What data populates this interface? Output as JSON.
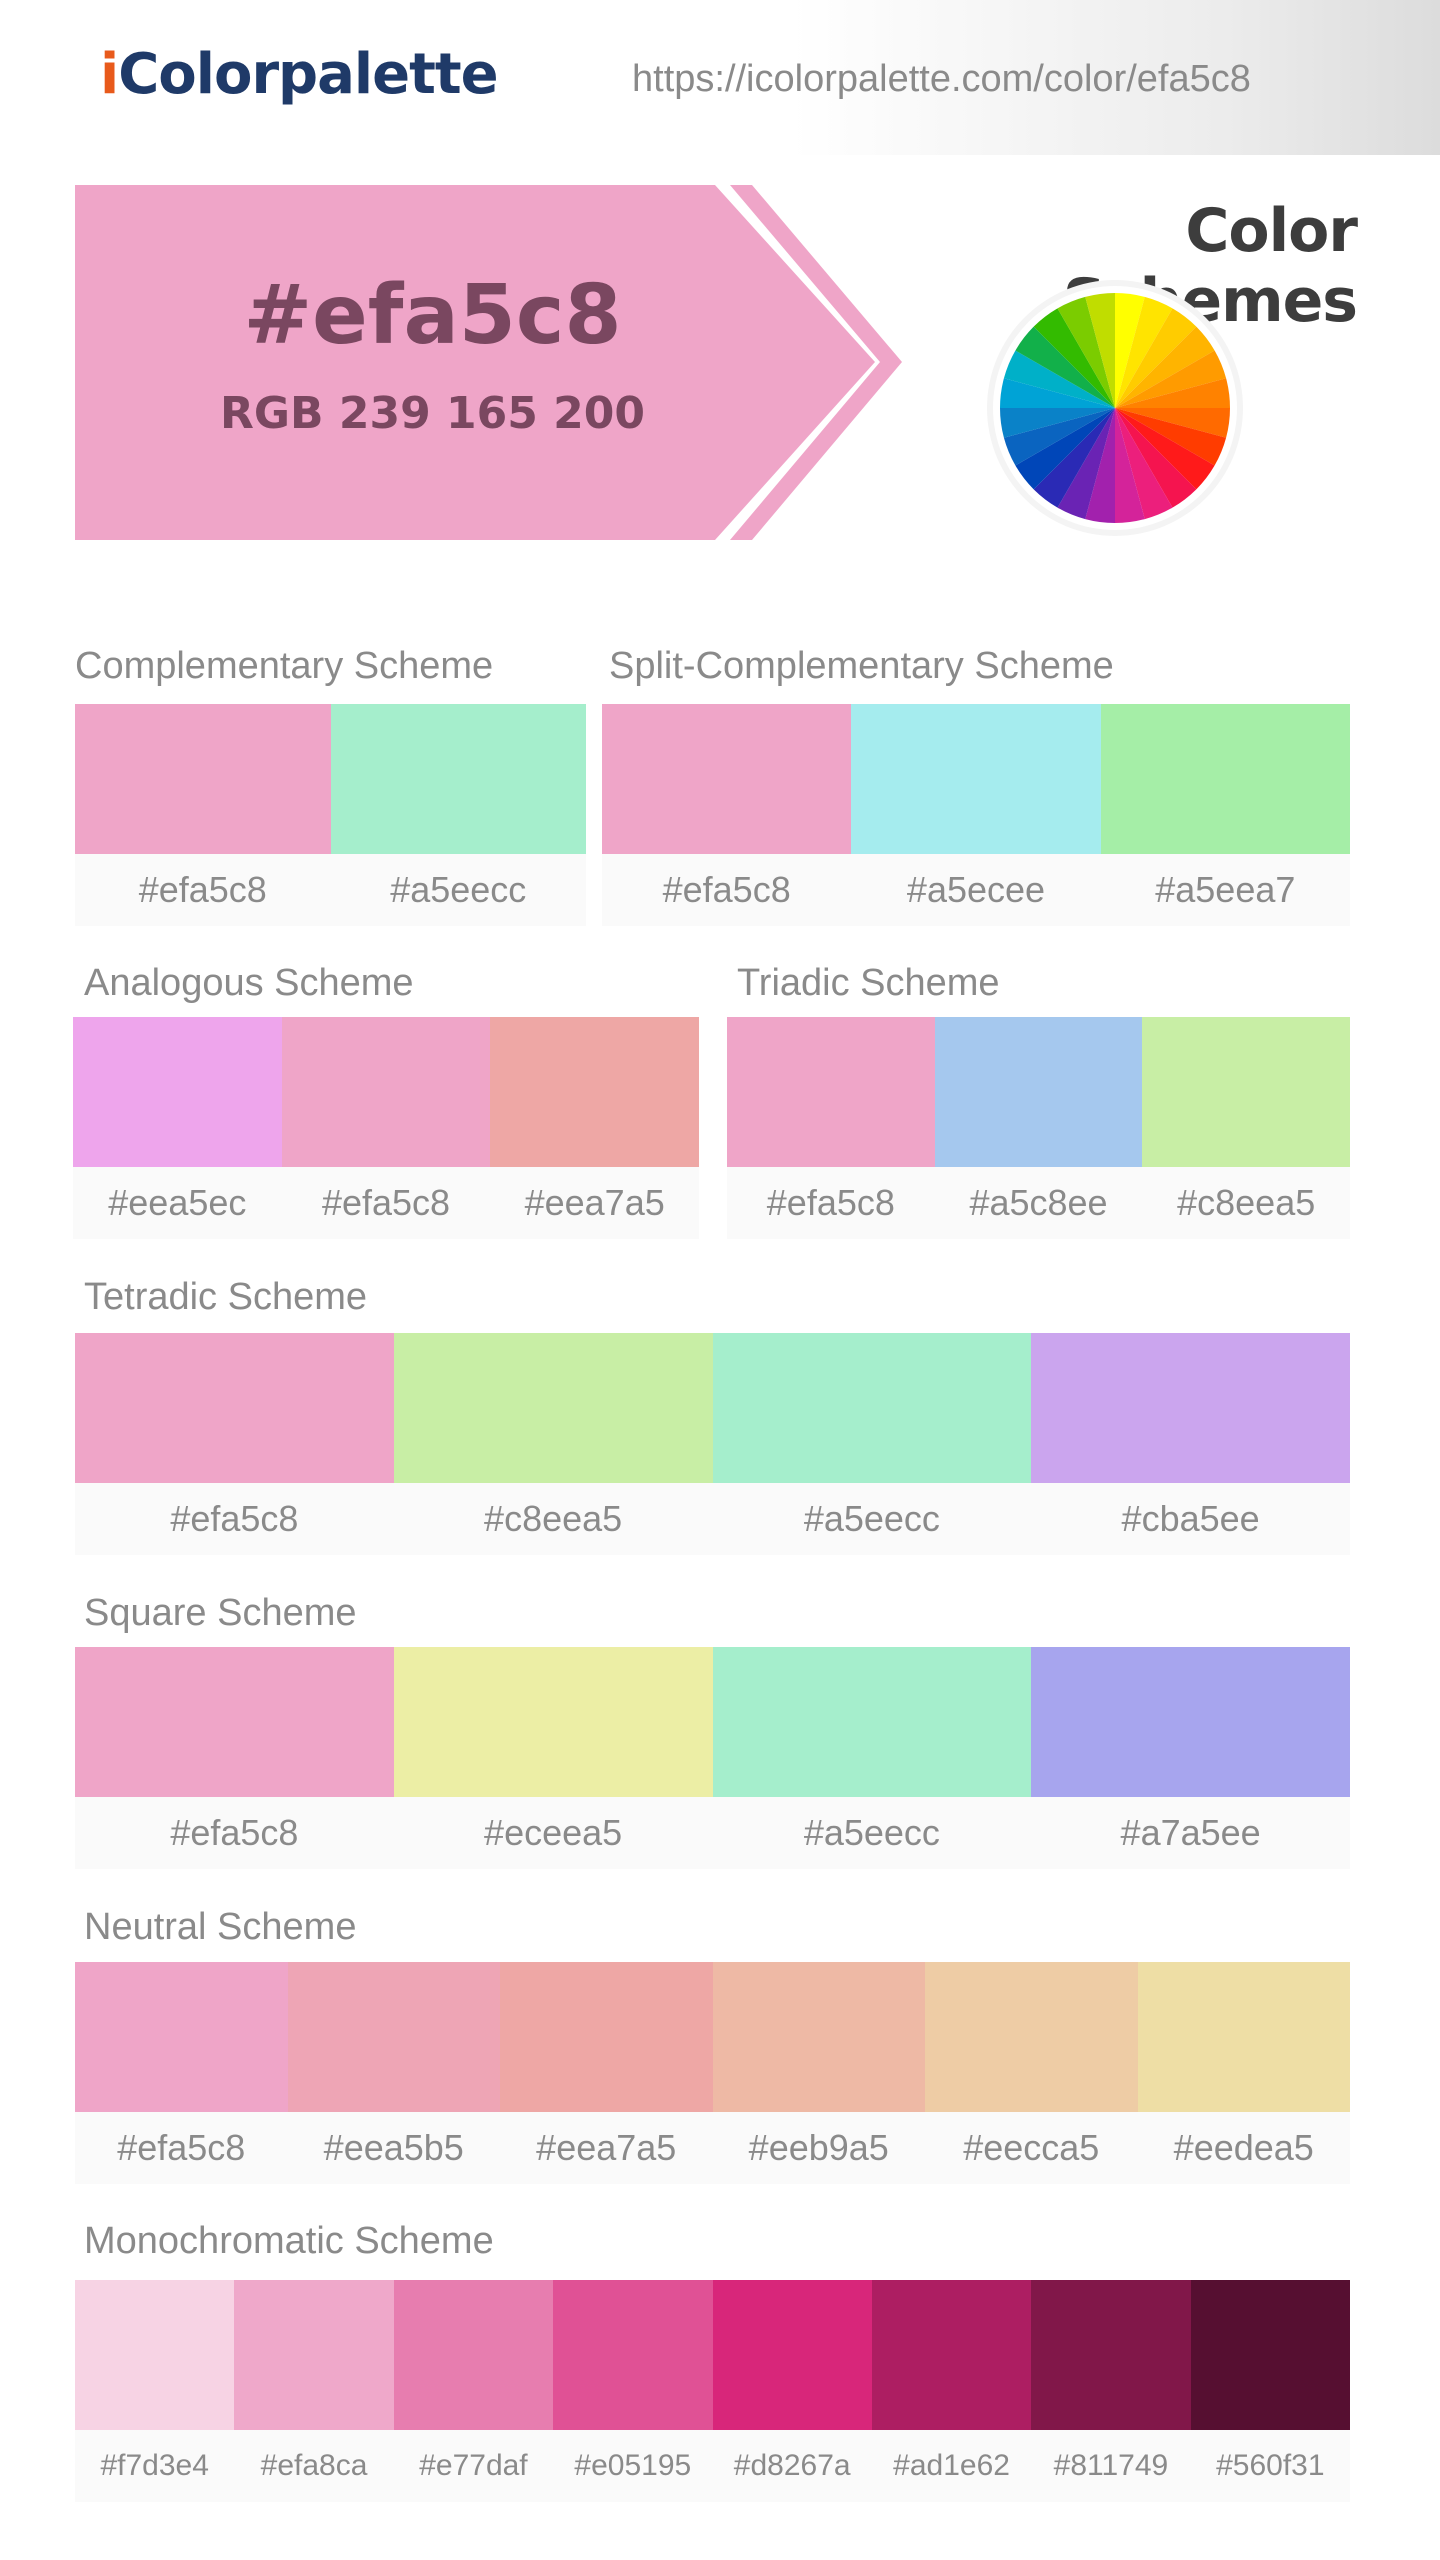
{
  "header": {
    "logo_i": "i",
    "logo_rest": "Colorpalette",
    "url": "https://icolorpalette.com/color/efa5c8"
  },
  "hero": {
    "hex": "#efa5c8",
    "rgb": "RGB 239 165 200",
    "color": "#efa5c8",
    "text_color": "#7a4760"
  },
  "color_schemes_title": "Color Schemes",
  "wheel": {
    "icon": "color-wheel-icon",
    "colors": [
      "#ffff00",
      "#ffe400",
      "#ffcc00",
      "#ffb400",
      "#ff9b00",
      "#ff8200",
      "#ff6a00",
      "#ff3c00",
      "#ff1a1a",
      "#f5144f",
      "#ec1f7c",
      "#d4239a",
      "#a221ad",
      "#6a23b4",
      "#2a2ab5",
      "#0046b8",
      "#0a64c0",
      "#0a82c8",
      "#00a3d6",
      "#00b0c8",
      "#12b04a",
      "#33bb00",
      "#7bcc00",
      "#c0dd00"
    ]
  },
  "schemes": {
    "complementary": {
      "title": "Complementary Scheme",
      "colors": [
        {
          "hex": "#efa5c8"
        },
        {
          "hex": "#a5eecc"
        }
      ]
    },
    "split": {
      "title": "Split-Complementary Scheme",
      "colors": [
        {
          "hex": "#efa5c8"
        },
        {
          "hex": "#a5ecee"
        },
        {
          "hex": "#a5eea7"
        }
      ]
    },
    "analogous": {
      "title": "Analogous Scheme",
      "colors": [
        {
          "hex": "#eea5ec"
        },
        {
          "hex": "#efa5c8"
        },
        {
          "hex": "#eea7a5"
        }
      ]
    },
    "triadic": {
      "title": "Triadic Scheme",
      "colors": [
        {
          "hex": "#efa5c8"
        },
        {
          "hex": "#a5c8ee"
        },
        {
          "hex": "#c8eea5"
        }
      ]
    },
    "tetradic": {
      "title": "Tetradic Scheme",
      "colors": [
        {
          "hex": "#efa5c8"
        },
        {
          "hex": "#c8eea5"
        },
        {
          "hex": "#a5eecc"
        },
        {
          "hex": "#cba5ee"
        }
      ]
    },
    "square": {
      "title": "Square Scheme",
      "colors": [
        {
          "hex": "#efa5c8"
        },
        {
          "hex": "#eceea5"
        },
        {
          "hex": "#a5eecc"
        },
        {
          "hex": "#a7a5ee"
        }
      ]
    },
    "neutral": {
      "title": "Neutral Scheme",
      "colors": [
        {
          "hex": "#efa5c8"
        },
        {
          "hex": "#eea5b5"
        },
        {
          "hex": "#eea7a5"
        },
        {
          "hex": "#eeb9a5"
        },
        {
          "hex": "#eecca5"
        },
        {
          "hex": "#eedea5"
        }
      ]
    },
    "monochromatic": {
      "title": "Monochromatic Scheme",
      "colors": [
        {
          "hex": "#f7d3e4"
        },
        {
          "hex": "#efa8ca"
        },
        {
          "hex": "#e77daf"
        },
        {
          "hex": "#e05195"
        },
        {
          "hex": "#d8267a"
        },
        {
          "hex": "#ad1e62"
        },
        {
          "hex": "#811749"
        },
        {
          "hex": "#560f31"
        }
      ]
    }
  }
}
